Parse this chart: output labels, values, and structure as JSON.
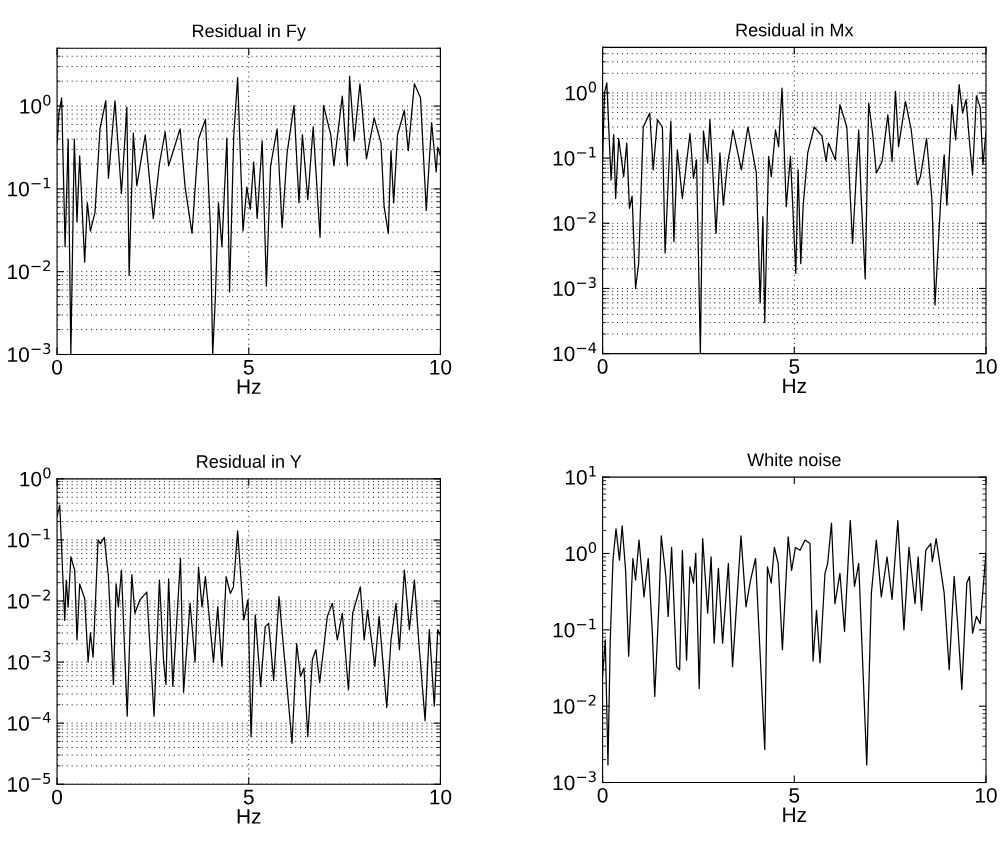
{
  "chart_data": [
    {
      "type": "line",
      "title": "Residual in Fy",
      "xlabel": "Hz",
      "log": "y",
      "grid": true,
      "xlim": [
        0,
        10
      ],
      "xticks": [
        0,
        5,
        10
      ],
      "ylim": [
        0.001,
        5
      ],
      "yticks": [
        {
          "value": 0.001,
          "label": "10$^{−3}$"
        },
        {
          "value": 0.01,
          "label": "10$^{−2}$"
        },
        {
          "value": 0.1,
          "label": "10$^{−1}$"
        },
        {
          "value": 1,
          "label": "10$^{0}$"
        }
      ],
      "series": [
        {
          "color": "#000000",
          "x": [
            0,
            0.05,
            0.12,
            0.21,
            0.29,
            0.36,
            0.45,
            0.52,
            0.59,
            0.72,
            0.79,
            0.87,
            0.99,
            1.12,
            1.27,
            1.34,
            1.51,
            1.68,
            1.82,
            1.88,
            1.99,
            2.08,
            2.3,
            2.51,
            2.67,
            2.82,
            2.91,
            3.21,
            3.34,
            3.52,
            3.69,
            3.87,
            4.0,
            4.06,
            4.13,
            4.21,
            4.3,
            4.43,
            4.5,
            4.61,
            4.71,
            4.85,
            4.95,
            5.04,
            5.13,
            5.22,
            5.35,
            5.46,
            5.57,
            5.74,
            5.87,
            6.0,
            6.18,
            6.31,
            6.4,
            6.54,
            6.68,
            6.86,
            6.95,
            7.14,
            7.22,
            7.44,
            7.57,
            7.63,
            7.75,
            7.9,
            8.07,
            8.27,
            8.45,
            8.53,
            8.64,
            8.71,
            8.78,
            8.88,
            9.06,
            9.16,
            9.32,
            9.48,
            9.63,
            9.77,
            9.89,
            9.93,
            10.0
          ],
          "values": [
            0.35,
            0.82,
            1.26,
            0.02,
            0.4,
            0.001,
            0.4,
            0.04,
            0.25,
            0.013,
            0.068,
            0.031,
            0.052,
            0.53,
            1.16,
            0.135,
            1.16,
            0.088,
            0.97,
            0.009,
            0.47,
            0.109,
            0.45,
            0.044,
            0.2,
            0.49,
            0.19,
            0.53,
            0.105,
            0.029,
            0.4,
            0.69,
            0.034,
            0.001,
            0.005,
            0.068,
            0.02,
            0.41,
            0.0057,
            0.45,
            2.2,
            0.031,
            0.105,
            0.057,
            0.21,
            0.044,
            0.38,
            0.0067,
            0.19,
            0.53,
            0.034,
            0.27,
            1.02,
            0.068,
            0.45,
            0.074,
            0.56,
            0.026,
            1.02,
            0.45,
            0.19,
            1.32,
            0.19,
            2.3,
            0.38,
            1.86,
            0.23,
            0.72,
            0.36,
            0.062,
            0.029,
            0.29,
            0.068,
            0.45,
            0.89,
            0.29,
            1.86,
            1.26,
            0.055,
            0.63,
            0.16,
            0.32,
            0.25
          ]
        }
      ]
    },
    {
      "type": "line",
      "title": "Residual in Mx",
      "xlabel": "Hz",
      "log": "y",
      "grid": true,
      "xlim": [
        0,
        10
      ],
      "xticks": [
        0,
        5,
        10
      ],
      "ylim": [
        0.0001,
        5
      ],
      "yticks": [
        {
          "value": 0.0001,
          "label": "10$^{−4}$"
        },
        {
          "value": 0.001,
          "label": "10$^{−3}$"
        },
        {
          "value": 0.01,
          "label": "10$^{−2}$"
        },
        {
          "value": 0.1,
          "label": "10$^{−1}$"
        },
        {
          "value": 1,
          "label": "10$^{0}$"
        }
      ],
      "series": [
        {
          "color": "#000000",
          "x": [
            0,
            0.05,
            0.11,
            0.22,
            0.29,
            0.34,
            0.42,
            0.55,
            0.63,
            0.7,
            0.77,
            0.86,
            0.94,
            1.06,
            1.23,
            1.32,
            1.43,
            1.56,
            1.63,
            1.78,
            1.86,
            1.95,
            2.08,
            2.28,
            2.37,
            2.45,
            2.55,
            2.63,
            2.74,
            2.8,
            2.96,
            3.06,
            3.15,
            3.26,
            3.33,
            3.4,
            3.62,
            3.79,
            4.01,
            4.11,
            4.18,
            4.23,
            4.33,
            4.4,
            4.51,
            4.59,
            4.68,
            4.79,
            4.9,
            5.04,
            5.1,
            5.17,
            5.23,
            5.35,
            5.52,
            5.72,
            5.83,
            5.89,
            6.07,
            6.19,
            6.37,
            6.52,
            6.68,
            6.74,
            6.85,
            6.94,
            7.05,
            7.14,
            7.29,
            7.44,
            7.55,
            7.64,
            7.72,
            7.9,
            8.05,
            8.21,
            8.29,
            8.45,
            8.59,
            8.67,
            8.82,
            8.91,
            8.98,
            9.11,
            9.21,
            9.3,
            9.39,
            9.48,
            9.58,
            9.65,
            9.75,
            9.85,
            9.92,
            10.0
          ],
          "values": [
            0.094,
            1.0,
            1.43,
            0.046,
            0.23,
            0.024,
            0.2,
            0.052,
            0.17,
            0.017,
            0.026,
            0.001,
            0.0024,
            0.3,
            0.49,
            0.066,
            0.39,
            0.3,
            0.0035,
            0.37,
            0.0052,
            0.134,
            0.024,
            0.24,
            0.049,
            0.094,
            0.0001,
            0.26,
            0.084,
            0.39,
            0.007,
            0.12,
            0.019,
            0.084,
            0.14,
            0.27,
            0.066,
            0.3,
            0.059,
            0.0006,
            0.0126,
            0.0003,
            0.106,
            0.052,
            0.27,
            0.15,
            1.19,
            0.018,
            0.106,
            0.0017,
            0.066,
            0.0024,
            0.018,
            0.12,
            0.3,
            0.22,
            0.089,
            0.17,
            0.094,
            0.66,
            0.3,
            0.0049,
            0.27,
            0.029,
            0.0014,
            0.7,
            0.22,
            0.059,
            0.089,
            0.46,
            0.089,
            1.06,
            0.15,
            0.74,
            0.27,
            0.039,
            0.052,
            0.2,
            0.023,
            0.00056,
            0.023,
            0.112,
            0.019,
            0.66,
            0.19,
            1.34,
            0.49,
            0.79,
            0.15,
            0.055,
            0.9,
            0.6,
            0.08,
            0.25
          ]
        }
      ]
    },
    {
      "type": "line",
      "title": "Residual in Y",
      "xlabel": "Hz",
      "log": "y",
      "grid": true,
      "xlim": [
        0,
        10
      ],
      "xticks": [
        0,
        5,
        10
      ],
      "ylim": [
        1e-05,
        1
      ],
      "yticks": [
        {
          "value": 1e-05,
          "label": "10$^{−5}$"
        },
        {
          "value": 0.0001,
          "label": "10$^{−4}$"
        },
        {
          "value": 0.001,
          "label": "10$^{−3}$"
        },
        {
          "value": 0.01,
          "label": "10$^{−2}$"
        },
        {
          "value": 0.1,
          "label": "10$^{−1}$"
        },
        {
          "value": 1,
          "label": "10$^{0}$"
        }
      ],
      "series": [
        {
          "color": "#000000",
          "x": [
            0,
            0.07,
            0.2,
            0.24,
            0.29,
            0.36,
            0.46,
            0.52,
            0.59,
            0.72,
            0.81,
            0.87,
            0.94,
            1.07,
            1.13,
            1.23,
            1.34,
            1.47,
            1.54,
            1.6,
            1.68,
            1.83,
            1.95,
            2.03,
            2.16,
            2.34,
            2.53,
            2.67,
            2.78,
            2.84,
            2.91,
            3.02,
            3.22,
            3.3,
            3.47,
            3.6,
            3.69,
            3.78,
            3.87,
            4.08,
            4.19,
            4.3,
            4.41,
            4.52,
            4.6,
            4.71,
            4.87,
            4.98,
            5.06,
            5.17,
            5.31,
            5.43,
            5.52,
            5.65,
            5.79,
            5.92,
            6.13,
            6.25,
            6.35,
            6.44,
            6.54,
            6.66,
            6.75,
            6.85,
            6.92,
            7.05,
            7.18,
            7.31,
            7.44,
            7.6,
            7.71,
            7.91,
            8.01,
            8.1,
            8.29,
            8.4,
            8.6,
            8.71,
            8.84,
            8.93,
            9.06,
            9.19,
            9.32,
            9.45,
            9.6,
            9.71,
            9.84,
            9.93,
            10.0
          ],
          "values": [
            0.24,
            0.37,
            0.0048,
            0.022,
            0.008,
            0.053,
            0.032,
            0.0023,
            0.019,
            0.011,
            0.001,
            0.003,
            0.0012,
            0.1,
            0.087,
            0.11,
            0.025,
            0.00043,
            0.019,
            0.008,
            0.032,
            0.00013,
            0.027,
            0.0063,
            0.0104,
            0.014,
            0.00013,
            0.022,
            0.001,
            0.00043,
            0.023,
            0.0004,
            0.05,
            0.00032,
            0.0092,
            0.001,
            0.036,
            0.008,
            0.025,
            0.001,
            0.008,
            0.00085,
            0.025,
            0.0133,
            0.017,
            0.14,
            0.0049,
            0.0104,
            6e-05,
            0.0059,
            0.0004,
            0.0038,
            0.0043,
            0.0005,
            0.0118,
            0.0014,
            4.7e-05,
            0.002,
            0.00058,
            0.0008,
            6e-05,
            0.0011,
            0.0016,
            0.00046,
            0.0011,
            0.0056,
            0.0092,
            0.0023,
            0.0063,
            0.00035,
            0.0063,
            0.017,
            0.0023,
            0.0071,
            0.00085,
            0.0056,
            0.00018,
            0.0023,
            0.0092,
            0.0016,
            0.032,
            0.0034,
            0.022,
            0.0016,
            0.00011,
            0.0034,
            0.00019,
            0.0034,
            0.0027
          ]
        }
      ]
    },
    {
      "type": "line",
      "title": "White noise",
      "xlabel": "Hz",
      "log": "y",
      "xlim": [
        0,
        10
      ],
      "xticks": [
        0,
        5,
        10
      ],
      "ylim": [
        0.001,
        10
      ],
      "yticks": [
        {
          "value": 0.001,
          "label": "10$^{−3}$"
        },
        {
          "value": 0.01,
          "label": "10$^{−2}$"
        },
        {
          "value": 0.1,
          "label": "10$^{−1}$"
        },
        {
          "value": 1,
          "label": "10$^{0}$"
        },
        {
          "value": 10,
          "label": "10$^{1}$"
        }
      ],
      "series": [
        {
          "color": "#000000",
          "x": [
            0,
            0.07,
            0.14,
            0.2,
            0.27,
            0.35,
            0.44,
            0.51,
            0.6,
            0.68,
            0.79,
            0.86,
            0.95,
            1.08,
            1.19,
            1.3,
            1.36,
            1.47,
            1.53,
            1.65,
            1.71,
            1.8,
            1.93,
            2.01,
            2.08,
            2.19,
            2.28,
            2.37,
            2.43,
            2.52,
            2.61,
            2.74,
            2.83,
            2.91,
            3.02,
            3.13,
            3.28,
            3.39,
            3.61,
            3.74,
            3.86,
            3.99,
            4.07,
            4.23,
            4.3,
            4.4,
            4.48,
            4.58,
            4.69,
            4.84,
            4.93,
            5.03,
            5.15,
            5.28,
            5.41,
            5.49,
            5.58,
            5.67,
            5.8,
            5.87,
            5.97,
            6.06,
            6.19,
            6.31,
            6.46,
            6.57,
            6.68,
            6.89,
            7.01,
            7.14,
            7.27,
            7.42,
            7.55,
            7.7,
            7.86,
            7.99,
            8.15,
            8.23,
            8.32,
            8.43,
            8.56,
            8.6,
            8.7,
            8.91,
            9.04,
            9.17,
            9.26,
            9.37,
            9.5,
            9.57,
            9.65,
            9.75,
            9.85,
            9.95,
            10.0
          ],
          "values": [
            0.025,
            0.074,
            0.0017,
            0.074,
            0.82,
            2.1,
            0.82,
            2.3,
            0.6,
            0.045,
            0.86,
            0.45,
            1.5,
            0.27,
            0.86,
            0.086,
            0.0134,
            0.22,
            1.7,
            0.5,
            0.15,
            1.2,
            0.033,
            0.03,
            1.1,
            0.04,
            0.67,
            0.41,
            1.0,
            0.017,
            1.57,
            0.165,
            0.9,
            0.067,
            0.64,
            0.067,
            0.74,
            0.033,
            1.7,
            0.2,
            0.45,
            0.86,
            0.122,
            0.0027,
            0.67,
            0.41,
            1.2,
            0.74,
            0.055,
            1.65,
            0.6,
            1.2,
            1.1,
            1.5,
            1.35,
            0.039,
            0.18,
            0.037,
            0.55,
            0.74,
            2.5,
            0.22,
            0.55,
            0.095,
            2.7,
            0.37,
            0.74,
            0.0017,
            0.3,
            1.5,
            0.27,
            0.9,
            0.25,
            2.7,
            0.1,
            1.2,
            0.22,
            0.9,
            0.18,
            1.1,
            1.35,
            0.78,
            1.57,
            0.3,
            0.03,
            0.5,
            0.122,
            0.0165,
            0.41,
            0.5,
            0.09,
            0.15,
            0.12,
            0.5,
            1.0
          ]
        }
      ]
    }
  ]
}
